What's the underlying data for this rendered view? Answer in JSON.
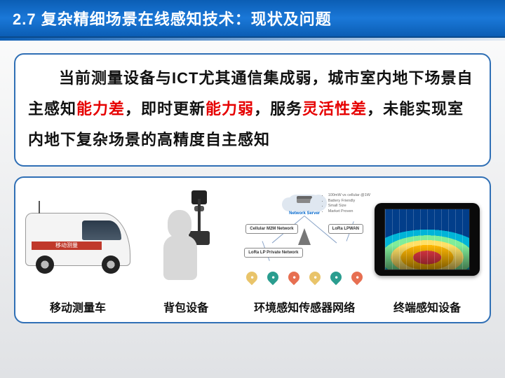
{
  "title": "2.7 复杂精细场景在线感知技术：现状及问题",
  "desc": {
    "plain1": "当前测量设备与ICT尤其通信集成弱，城市室内地下场景自主感知",
    "hl1": "能力差",
    "plain2": "，即时更新",
    "hl2": "能力弱",
    "plain3": "，服务",
    "hl3": "灵活性差",
    "plain4": "，未能实现室内地下复杂场景的高精度自主感知"
  },
  "captions": {
    "c1": "移动测量车",
    "c2": "背包设备",
    "c3": "环境感知传感器网络",
    "c4": "终端感知设备"
  },
  "van_stripe": "移动测量",
  "network": {
    "cloud_label": "Network Server",
    "left_box": "Cellular M2M Network",
    "right_box": "LoRa LPWAN",
    "bottomleft_box": "LoRa LP Private Network",
    "specs": [
      "100mW vs cellular @1W",
      "Battery Friendly",
      "Small Size",
      "Market Proven"
    ],
    "pin_colors": [
      "#e9c46a",
      "#2a9d8f",
      "#e76f51",
      "#e9c46a",
      "#2a9d8f",
      "#e76f51"
    ]
  }
}
